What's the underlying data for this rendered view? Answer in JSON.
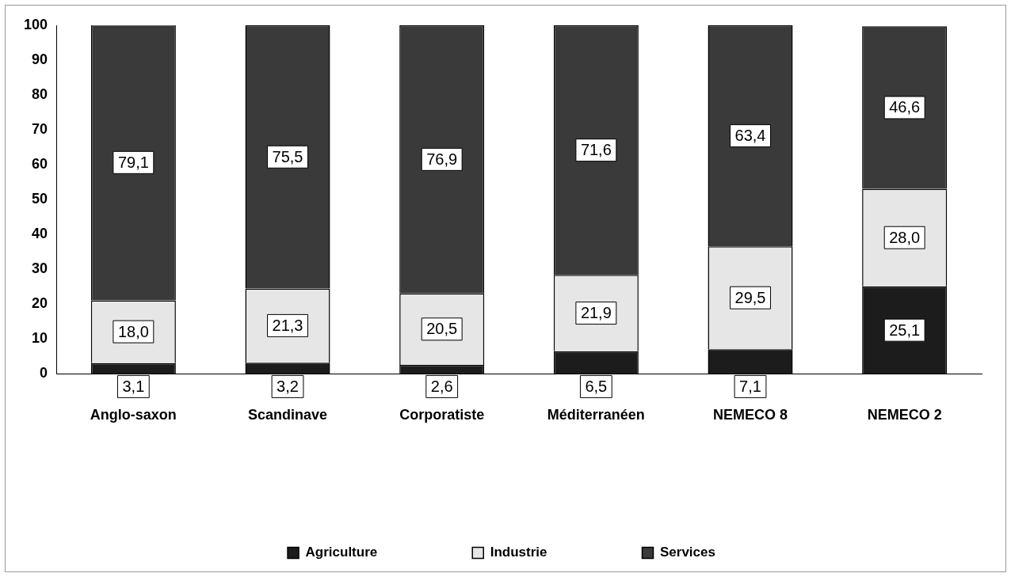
{
  "chart_data": {
    "type": "bar",
    "stacked": true,
    "categories": [
      "Anglo-saxon",
      "Scandinave",
      "Corporatiste",
      "Méditerranéen",
      "NEMECO 8",
      "NEMECO 2"
    ],
    "series": [
      {
        "name": "Agriculture",
        "color": "#1c1c1c",
        "values": [
          3.1,
          3.2,
          2.6,
          6.5,
          7.1,
          25.1
        ],
        "value_labels": [
          "3,1",
          "3,2",
          "2,6",
          "6,5",
          "7,1",
          "25,1"
        ]
      },
      {
        "name": "Industrie",
        "color": "#e6e6e6",
        "values": [
          18.0,
          21.3,
          20.5,
          21.9,
          29.5,
          28.0
        ],
        "value_labels": [
          "18,0",
          "21,3",
          "20,5",
          "21,9",
          "29,5",
          "28,0"
        ]
      },
      {
        "name": "Services",
        "color": "#3a3a3a",
        "values": [
          79.1,
          75.5,
          76.9,
          71.6,
          63.4,
          46.6
        ],
        "value_labels": [
          "79,1",
          "75,5",
          "76,9",
          "71,6",
          "63,4",
          "46,6"
        ]
      }
    ],
    "ylim": [
      0,
      100
    ],
    "yticks": [
      0,
      10,
      20,
      30,
      40,
      50,
      60,
      70,
      80,
      90,
      100
    ],
    "grid": false,
    "legend": "bottom"
  }
}
